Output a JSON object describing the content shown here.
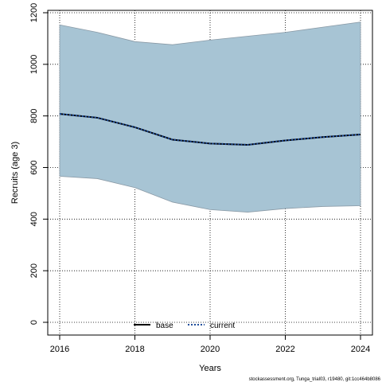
{
  "chart_data": {
    "type": "area",
    "xlabel": "Years",
    "ylabel": "Recruits (age 3)",
    "xlim": [
      2016,
      2024
    ],
    "ylim": [
      0,
      1200
    ],
    "x_ticks": [
      2016,
      2018,
      2020,
      2022,
      2024
    ],
    "y_ticks": [
      0,
      200,
      400,
      600,
      800,
      1000,
      1200
    ],
    "grid": true,
    "legend_position": "bottom-center",
    "x": [
      2016,
      2017,
      2018,
      2019,
      2020,
      2021,
      2022,
      2023,
      2024
    ],
    "band": {
      "upper": [
        1153,
        1124,
        1088,
        1076,
        1094,
        1109,
        1124,
        1144,
        1164
      ],
      "lower": [
        566,
        557,
        522,
        466,
        437,
        427,
        441,
        449,
        452
      ],
      "color": "#a7c4d4"
    },
    "series": [
      {
        "name": "base",
        "values": [
          808,
          793,
          756,
          708,
          693,
          688,
          705,
          718,
          728
        ],
        "color": "#000000",
        "style": "solid"
      },
      {
        "name": "current",
        "values": [
          808,
          793,
          756,
          708,
          693,
          688,
          705,
          718,
          728
        ],
        "color": "#1f4e9c",
        "style": "dotted"
      }
    ]
  },
  "footer": "stockassessment.org, Tunga_trial03, r19480, git:1cc464b8086"
}
